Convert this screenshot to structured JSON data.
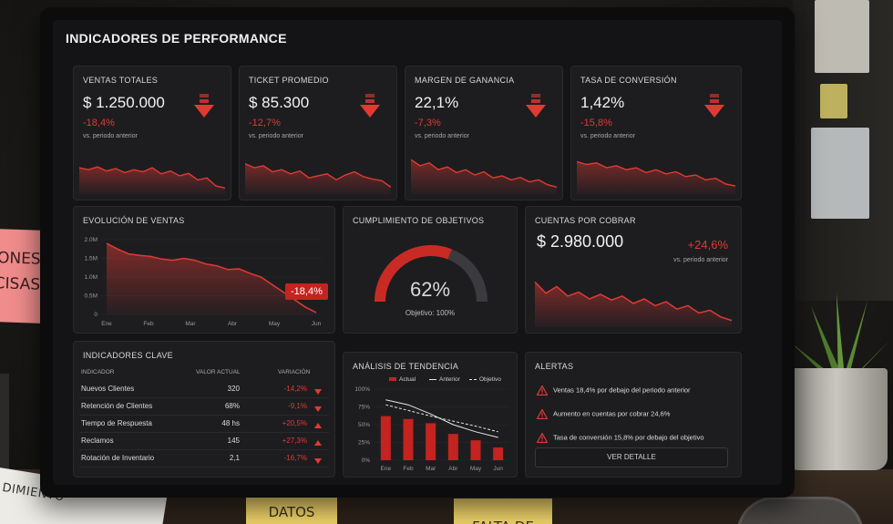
{
  "dashboard": {
    "title": "INDICADORES DE PERFORMANCE",
    "accent_color": "#e03a33",
    "kpis": [
      {
        "title": "VENTAS TOTALES",
        "value": "$ 1.250.000",
        "change": "-18,4%",
        "note": "vs. periodo anterior",
        "trend": [
          0.6,
          0.55,
          0.62,
          0.52,
          0.58,
          0.48,
          0.55,
          0.5,
          0.6,
          0.45,
          0.52,
          0.4,
          0.46,
          0.3,
          0.35,
          0.15,
          0.1
        ]
      },
      {
        "title": "TICKET PROMEDIO",
        "value": "$ 85.300",
        "change": "-12,7%",
        "note": "vs. periodo anterior",
        "trend": [
          0.7,
          0.6,
          0.65,
          0.5,
          0.55,
          0.45,
          0.52,
          0.35,
          0.4,
          0.45,
          0.3,
          0.42,
          0.5,
          0.38,
          0.32,
          0.28,
          0.12
        ]
      },
      {
        "title": "MARGEN DE GANANCIA",
        "value": "22,1%",
        "change": "-7,3%",
        "note": "vs. periodo anterior",
        "trend": [
          0.8,
          0.65,
          0.72,
          0.55,
          0.62,
          0.48,
          0.55,
          0.42,
          0.5,
          0.35,
          0.4,
          0.3,
          0.36,
          0.25,
          0.3,
          0.18,
          0.12
        ]
      },
      {
        "title": "TASA DE CONVERSIÓN",
        "value": "1,42%",
        "change": "-15,8%",
        "note": "vs. periodo anterior",
        "trend": [
          0.75,
          0.68,
          0.72,
          0.6,
          0.65,
          0.55,
          0.6,
          0.48,
          0.55,
          0.45,
          0.5,
          0.38,
          0.42,
          0.3,
          0.34,
          0.2,
          0.15
        ]
      }
    ],
    "sales_evolution": {
      "title": "EVOLUCIÓN DE VENTAS",
      "badge": "-18,4%",
      "y_ticks": [
        "2.0M",
        "1.5M",
        "1.0M",
        "0.5M",
        "0"
      ],
      "x_ticks": [
        "Ene",
        "Feb",
        "Mar",
        "Abr",
        "May",
        "Jun"
      ]
    },
    "goals": {
      "title": "CUMPLIMIENTO DE OBJETIVOS",
      "value": "62%",
      "note": "Objetivo: 100%",
      "fraction": 0.62
    },
    "receivables": {
      "title": "CUENTAS POR COBRAR",
      "value": "$ 2.980.000",
      "change": "+24,6%",
      "note": "vs. periodo anterior",
      "trend": [
        0.8,
        0.6,
        0.72,
        0.55,
        0.62,
        0.5,
        0.58,
        0.48,
        0.55,
        0.42,
        0.5,
        0.38,
        0.45,
        0.32,
        0.38,
        0.25,
        0.3,
        0.18,
        0.12
      ]
    },
    "key_indicators": {
      "title": "INDICADORES CLAVE",
      "headers": [
        "INDICADOR",
        "VALOR ACTUAL",
        "VARIACIÓN"
      ],
      "rows": [
        {
          "name": "Nuevos Clientes",
          "value": "320",
          "change": "-14,2%",
          "dir": "down"
        },
        {
          "name": "Retención de Clientes",
          "value": "68%",
          "change": "-9,1%",
          "dir": "down"
        },
        {
          "name": "Tiempo de Respuesta",
          "value": "48 hs",
          "change": "+20,5%",
          "dir": "up"
        },
        {
          "name": "Reclamos",
          "value": "145",
          "change": "+27,3%",
          "dir": "up"
        },
        {
          "name": "Rotación de Inventario",
          "value": "2,1",
          "change": "-16,7%",
          "dir": "down"
        }
      ]
    },
    "trend_analysis": {
      "title": "ANÁLISIS DE TENDENCIA",
      "legend": [
        "Actual",
        "Anterior",
        "Objetivo"
      ],
      "y_ticks": [
        "100%",
        "75%",
        "50%",
        "25%",
        "0%"
      ],
      "x_ticks": [
        "Ene",
        "Feb",
        "Mar",
        "Abr",
        "May",
        "Jun"
      ]
    },
    "alerts": {
      "title": "ALERTAS",
      "items": [
        "Ventas 18,4% por debajo del periodo anterior",
        "Aumento en cuentas por cobrar 24,6%",
        "Tasa de conversión 15,8% por debajo del objetivo"
      ],
      "button": "VER DETALLE"
    }
  },
  "scene": {
    "sticky_left": "ONES\nCISAS",
    "paper": "DIMIENTO",
    "sticky_mid": "DATOS",
    "sticky_right": "FALTA DE"
  },
  "chart_data": [
    {
      "type": "area",
      "title": "EVOLUCIÓN DE VENTAS",
      "x": [
        "Ene",
        "Feb",
        "Mar",
        "Abr",
        "May",
        "Jun"
      ],
      "series": [
        {
          "values": [
            1.9,
            1.55,
            1.45,
            1.2,
            0.6,
            0.05
          ]
        }
      ],
      "ylim": [
        0,
        2.0
      ]
    },
    {
      "type": "bar",
      "title": "ANÁLISIS DE TENDENCIA",
      "categories": [
        "Ene",
        "Feb",
        "Mar",
        "Abr",
        "May",
        "Jun"
      ],
      "series": [
        {
          "name": "Actual",
          "values": [
            62,
            58,
            52,
            37,
            28,
            18
          ]
        },
        {
          "name": "Anterior",
          "values": [
            85,
            78,
            65,
            50,
            40,
            32
          ]
        },
        {
          "name": "Objetivo",
          "values": [
            78,
            70,
            62,
            55,
            48,
            40
          ]
        }
      ],
      "ylim": [
        0,
        100
      ]
    }
  ]
}
